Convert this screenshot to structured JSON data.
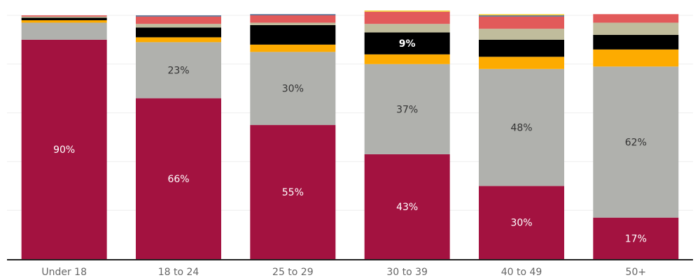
{
  "chart_data": {
    "type": "bar",
    "stacked": true,
    "normalized_percent": true,
    "grid": true,
    "legend": "none",
    "categories": [
      "Under 18",
      "18 to 24",
      "25 to 29",
      "30 to 39",
      "40 to 49",
      "50+"
    ],
    "series": [
      {
        "color": "#a31240",
        "values": [
          90,
          66,
          55,
          43,
          30,
          17
        ],
        "labels": [
          "90%",
          "66%",
          "55%",
          "43%",
          "30%",
          "17%"
        ]
      },
      {
        "color": "#b0b1ad",
        "values": [
          7,
          23,
          30,
          37,
          48,
          62
        ],
        "labels": [
          "",
          "23%",
          "30%",
          "37%",
          "48%",
          "62%"
        ]
      },
      {
        "color": "#fdab00",
        "values": [
          1,
          2,
          3,
          4,
          5,
          7
        ],
        "labels": [
          "",
          "",
          "",
          "",
          "",
          ""
        ]
      },
      {
        "color": "#000000",
        "values": [
          1,
          4,
          8,
          9,
          7,
          6
        ],
        "labels": [
          "",
          "",
          "",
          "9%",
          "",
          ""
        ]
      },
      {
        "color": "#c0bc9c",
        "values": [
          0.5,
          1.5,
          1,
          3.5,
          4.5,
          5
        ],
        "labels": [
          "",
          "",
          "",
          "",
          "",
          ""
        ]
      },
      {
        "color": "#e25a5a",
        "values": [
          0.5,
          3,
          3,
          5,
          5,
          3.5
        ],
        "labels": [
          "",
          "",
          "",
          "",
          "",
          ""
        ]
      },
      {
        "color": "#5b6f92",
        "values": [
          0,
          0.5,
          0.5,
          0,
          0.5,
          0
        ],
        "labels": [
          "",
          "",
          "",
          "",
          "",
          ""
        ]
      },
      {
        "color": "#f4d03f",
        "values": [
          0,
          0,
          0,
          0.5,
          0.5,
          0
        ],
        "labels": [
          "",
          "",
          "",
          "",
          "",
          ""
        ]
      }
    ],
    "ylim": [
      0,
      100
    ],
    "title": "",
    "xlabel": "",
    "ylabel": ""
  }
}
